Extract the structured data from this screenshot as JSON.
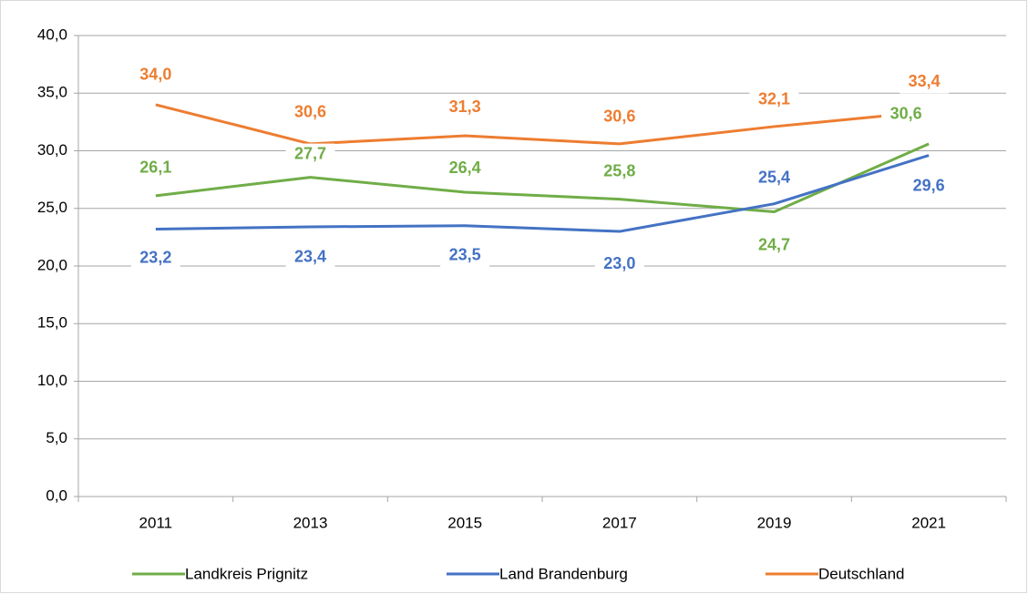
{
  "chart_data": {
    "type": "line",
    "categories": [
      "2011",
      "2013",
      "2015",
      "2017",
      "2019",
      "2021"
    ],
    "series": [
      {
        "name": "Landkreis Prignitz",
        "color": "#70ad47",
        "values": [
          26.1,
          27.7,
          26.4,
          25.8,
          24.7,
          30.6
        ],
        "value_labels": [
          "26,1",
          "27,7",
          "26,4",
          "25,8",
          "24,7",
          "30,6"
        ]
      },
      {
        "name": "Land Brandenburg",
        "color": "#4472c4",
        "values": [
          23.2,
          23.4,
          23.5,
          23.0,
          25.4,
          29.6
        ],
        "value_labels": [
          "23,2",
          "23,4",
          "23,5",
          "23,0",
          "25,4",
          "29,6"
        ]
      },
      {
        "name": "Deutschland",
        "color": "#ed7d31",
        "values": [
          34.0,
          30.6,
          31.3,
          30.6,
          32.1,
          33.4
        ],
        "value_labels": [
          "34,0",
          "30,6",
          "31,3",
          "30,6",
          "32,1",
          "33,4"
        ]
      }
    ],
    "ylim": [
      0,
      40
    ],
    "yticks": [
      {
        "value": 0,
        "label": "0,0"
      },
      {
        "value": 5,
        "label": "5,0"
      },
      {
        "value": 10,
        "label": "10,0"
      },
      {
        "value": 15,
        "label": "15,0"
      },
      {
        "value": 20,
        "label": "20,0"
      },
      {
        "value": 25,
        "label": "25,0"
      },
      {
        "value": 30,
        "label": "30,0"
      },
      {
        "value": 35,
        "label": "35,0"
      },
      {
        "value": 40,
        "label": "40,0"
      }
    ],
    "grid": true,
    "legend": "bottom"
  }
}
